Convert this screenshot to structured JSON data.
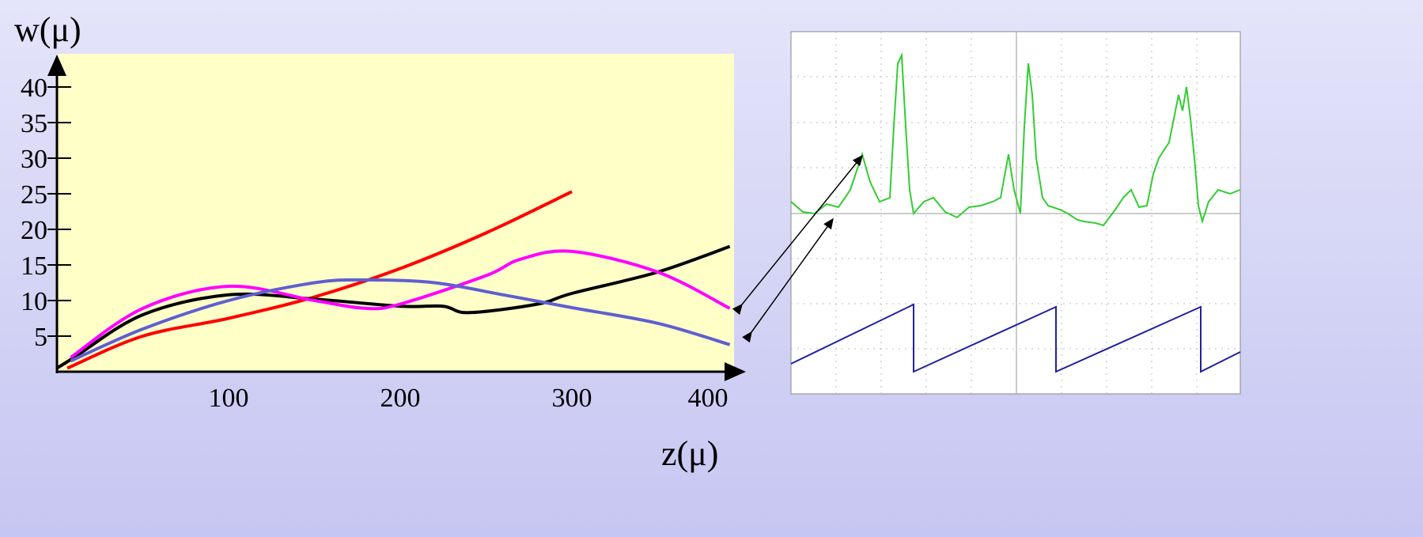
{
  "chart_data": {
    "type": "line",
    "y_label": "w(μ)",
    "x_label": "z(μ)",
    "xlim": [
      0,
      400
    ],
    "ylim": [
      0,
      44
    ],
    "xticks": [
      100,
      200,
      300,
      400
    ],
    "yticks": [
      5,
      10,
      15,
      20,
      25,
      30,
      35,
      40
    ],
    "grid": false,
    "series": [
      {
        "color": "#ff0000",
        "x": [
          6,
          50,
          100,
          150,
          200,
          250,
          300
        ],
        "values": [
          0.5,
          5,
          7.5,
          10.5,
          14.5,
          19.5,
          25.3
        ]
      },
      {
        "color": "#000000",
        "x": [
          0,
          10,
          50,
          100,
          150,
          200,
          225,
          240,
          280,
          300,
          350,
          392
        ],
        "values": [
          0.5,
          2,
          8,
          10.8,
          10.2,
          9.2,
          9.2,
          8.3,
          9.5,
          11,
          14,
          17.6
        ]
      },
      {
        "color": "#ff00ff",
        "x": [
          8,
          50,
          100,
          150,
          180,
          200,
          250,
          270,
          300,
          350,
          392
        ],
        "values": [
          2,
          8.9,
          12,
          10,
          8.9,
          9.5,
          13.5,
          15.8,
          16.9,
          14,
          8.9
        ]
      },
      {
        "color": "#5f5fd0",
        "x": [
          8,
          50,
          100,
          150,
          180,
          220,
          260,
          300,
          350,
          392
        ],
        "values": [
          1.5,
          6,
          10,
          12.5,
          12.9,
          12.5,
          10.8,
          9,
          6.8,
          3.8
        ]
      }
    ]
  }
}
